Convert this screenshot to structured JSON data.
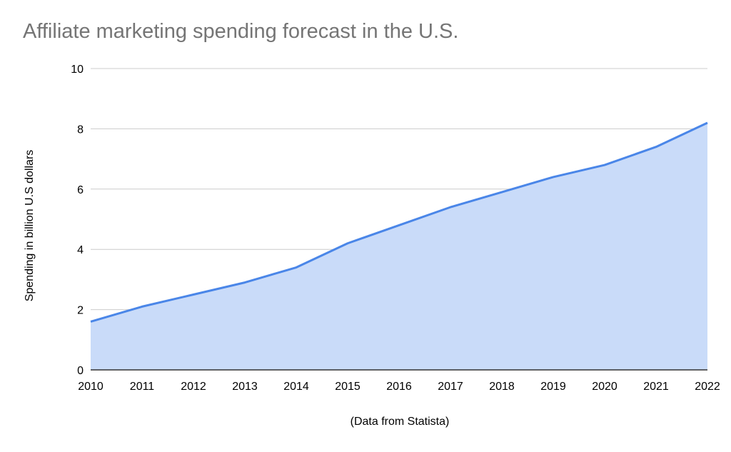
{
  "chart_data": {
    "type": "area",
    "title": "Affiliate marketing spending forecast in the U.S.",
    "xlabel": "(Data from Statista)",
    "ylabel": "Spending in billion U.S dollars",
    "categories": [
      "2010",
      "2011",
      "2012",
      "2013",
      "2014",
      "2015",
      "2016",
      "2017",
      "2018",
      "2019",
      "2020",
      "2021",
      "2022"
    ],
    "values": [
      1.6,
      2.1,
      2.5,
      2.9,
      3.4,
      4.2,
      4.8,
      5.4,
      5.9,
      6.4,
      6.8,
      7.4,
      8.2
    ],
    "ylim": [
      0,
      10
    ],
    "yticks": [
      0,
      2,
      4,
      6,
      8,
      10
    ],
    "grid": true,
    "legend": "none",
    "colors": {
      "line": "#4a86e8",
      "fill": "#c9dbf9",
      "grid": "#cccccc",
      "axis": "#333333"
    }
  }
}
